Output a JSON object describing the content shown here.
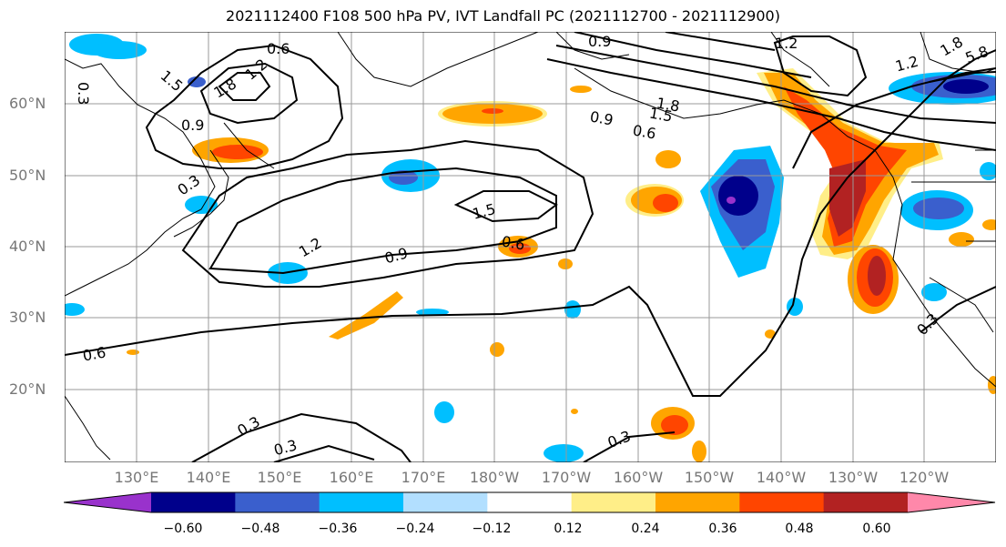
{
  "title": "2021112400 F108 500 hPa PV, IVT Landfall PC (2021112700 - 2021112900)",
  "lat_labels": [
    "60°N",
    "50°N",
    "40°N",
    "30°N",
    "20°N"
  ],
  "lon_labels": [
    "130°E",
    "140°E",
    "150°E",
    "160°E",
    "170°E",
    "180°W",
    "170°W",
    "160°W",
    "150°W",
    "140°W",
    "130°W",
    "120°W"
  ],
  "contour_labels": [
    "0.6",
    "1.2",
    "1.5",
    "1.8",
    "0.9",
    "0.3",
    "0.9",
    "1.8",
    "1.5",
    "0.9",
    "0.6",
    "0.3",
    "1.5",
    "1.2",
    "0.9",
    "0.6",
    "0.3",
    "0.3",
    "0.3",
    "0.3",
    "1.2",
    "1.8",
    "1.2",
    "5.8"
  ],
  "colorbar": {
    "ticks": [
      "−0.60",
      "−0.48",
      "−0.36",
      "−0.24",
      "−0.12",
      "0.12",
      "0.24",
      "0.36",
      "0.48",
      "0.60"
    ],
    "colors": [
      "#9932cc",
      "#00008b",
      "#3a5fcd",
      "#00bfff",
      "#b2dfff",
      "#ffffff",
      "#ffee88",
      "#ffa500",
      "#ff4500",
      "#b22222",
      "#ff88aa"
    ]
  },
  "colors": {
    "purple": "#9932cc",
    "navy": "#00008b",
    "blue": "#3a5fcd",
    "cyan": "#00bfff",
    "lightblue": "#b2dfff",
    "yellow": "#ffee88",
    "orange": "#ffa500",
    "red": "#ff4500",
    "darkred": "#b22222"
  }
}
